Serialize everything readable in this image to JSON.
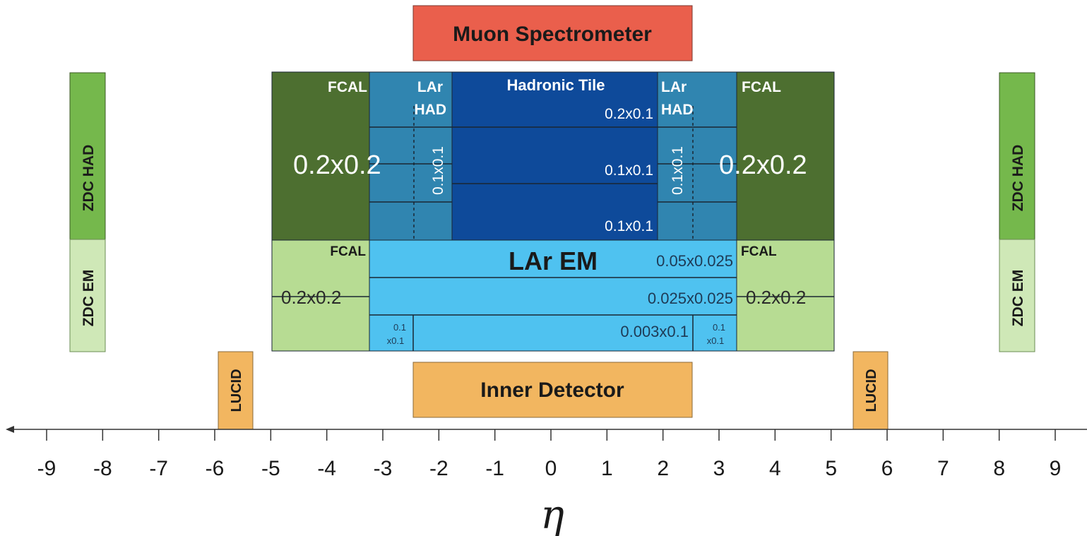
{
  "colors": {
    "muon": "#ea5f4c",
    "inner": "#f2b660",
    "lucid": "#f2b660",
    "fcal_had": "#4d6f30",
    "fcal_em": "#b7dc93",
    "lar_had": "#3085b0",
    "tile": "#0e4a9a",
    "lar_em": "#4fc2f0",
    "zdc_had": "#75b84c",
    "zdc_em": "#cfe8b7",
    "outline": "#1a2633"
  },
  "muon_spectrometer": {
    "label": "Muon Spectrometer"
  },
  "inner_detector": {
    "label": "Inner Detector"
  },
  "lucid": {
    "left_label": "LUCID",
    "right_label": "LUCID"
  },
  "zdc": {
    "left": {
      "had_label": "ZDC HAD",
      "em_label": "ZDC EM"
    },
    "right": {
      "had_label": "ZDC HAD",
      "em_label": "ZDC EM"
    }
  },
  "fcal": {
    "had_label_left": "FCAL",
    "had_label_right": "FCAL",
    "had_granularity_left": "0.2x0.2",
    "had_granularity_right": "0.2x0.2",
    "em_label_left": "FCAL",
    "em_label_right": "FCAL",
    "em_granularity_left": "0.2x0.2",
    "em_granularity_right": "0.2x0.2"
  },
  "lar_had": {
    "left_label_line1": "LAr",
    "left_label_line2": "HAD",
    "right_label_line1": "LAr",
    "right_label_line2": "HAD",
    "left_granularity": "0.1x0.1",
    "right_granularity": "0.1x0.1"
  },
  "hadronic_tile": {
    "label": "Hadronic Tile",
    "layer1": "0.2x0.1",
    "layer2": "0.1x0.1",
    "layer3": "0.1x0.1"
  },
  "lar_em": {
    "label": "LAr EM",
    "layer1": "0.05x0.025",
    "layer2": "0.025x0.025",
    "layer3": "0.003x0.1",
    "side_left_line1": "0.1",
    "side_left_line2": "x0.1",
    "side_right_line1": "0.1",
    "side_right_line2": "x0.1"
  },
  "axis": {
    "label": "η",
    "ticks": [
      "-9",
      "-8",
      "-7",
      "-6",
      "-5",
      "-4",
      "-3",
      "-2",
      "-1",
      "0",
      "1",
      "2",
      "3",
      "4",
      "5",
      "6",
      "7",
      "8",
      "9"
    ]
  }
}
